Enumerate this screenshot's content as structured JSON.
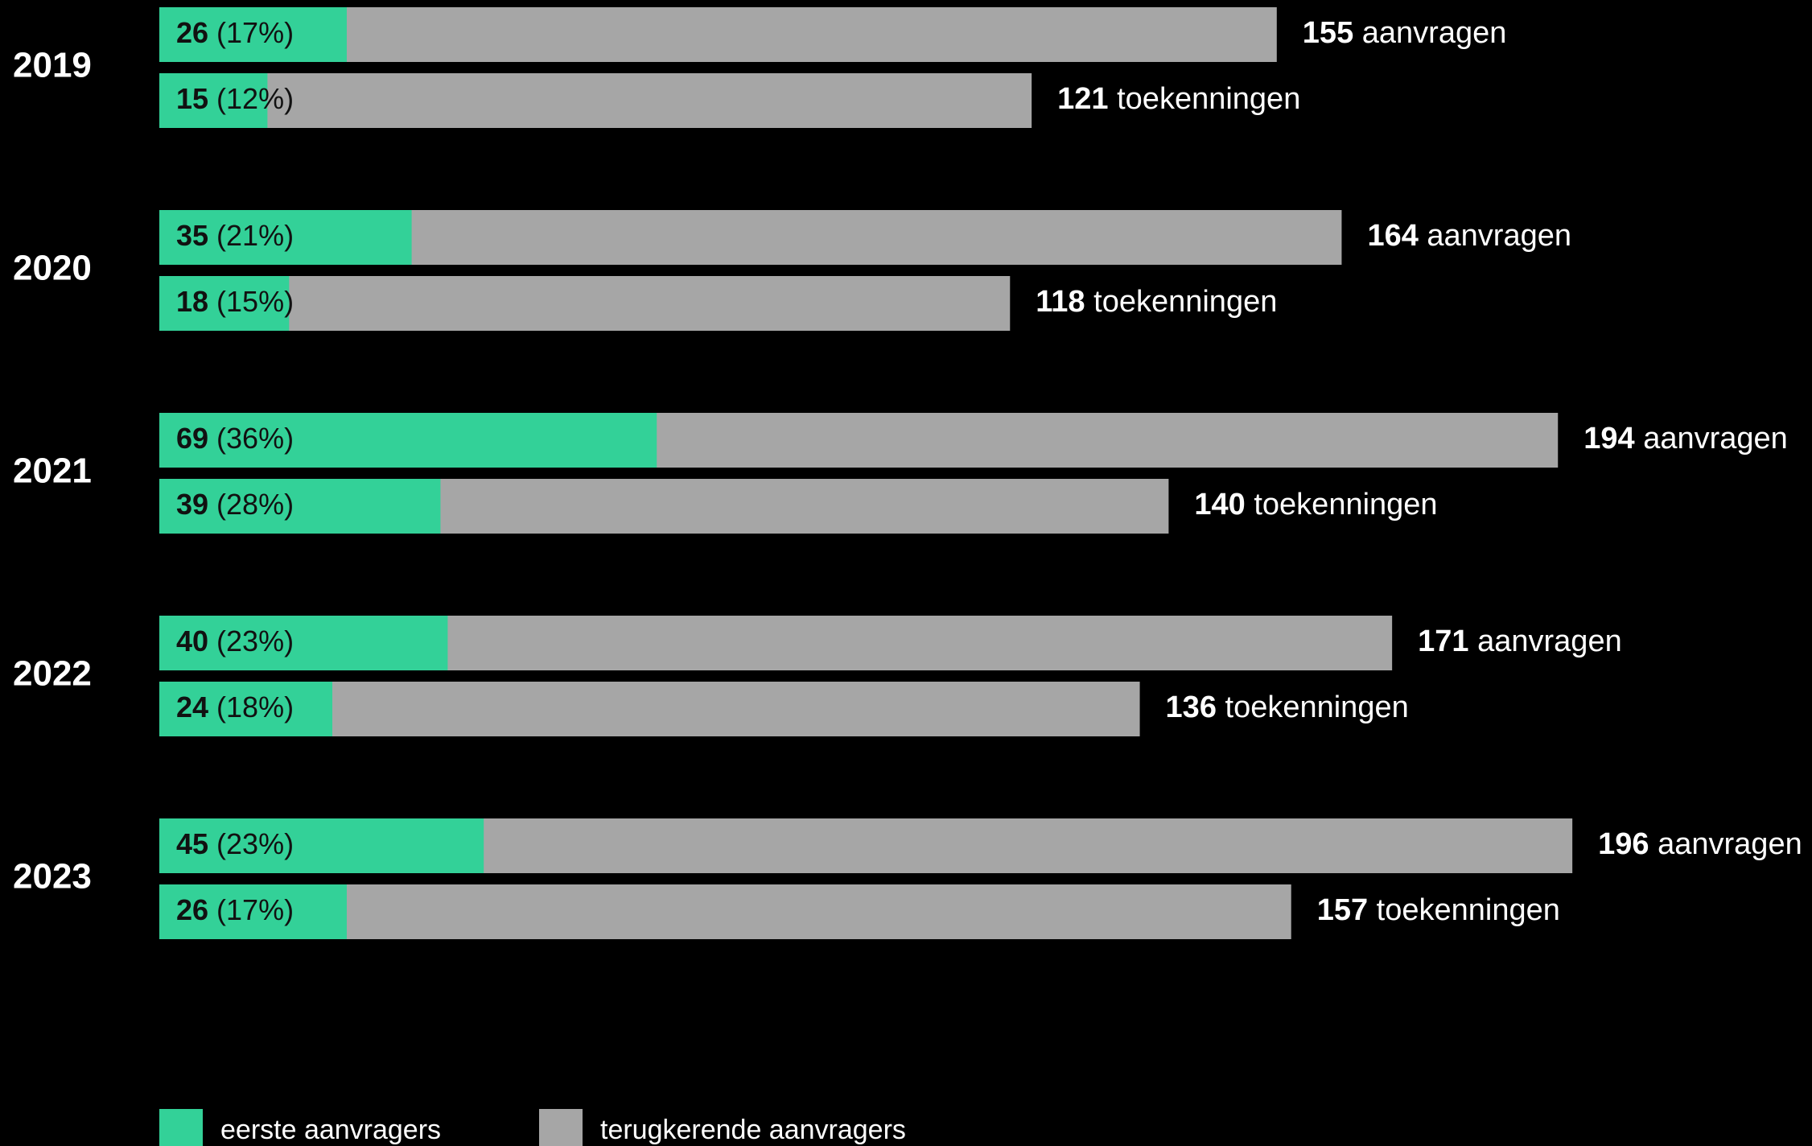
{
  "chart_data": {
    "type": "bar",
    "orientation": "horizontal",
    "stacked": true,
    "colors": {
      "background": "#000000",
      "eerste": "#33d198",
      "terugkerend": "#a6a6a6",
      "text": "#ffffff"
    },
    "legend": {
      "placement": "bottom-left",
      "items": [
        {
          "key": "eerste",
          "label": "eerste aanvragers"
        },
        {
          "key": "terugkerend",
          "label": "terugkerende aanvragers"
        }
      ]
    },
    "groups": [
      {
        "year": "2019",
        "bars": [
          {
            "total": 155,
            "total_label": "aanvragen",
            "first": 26,
            "first_pct": "(17%)"
          },
          {
            "total": 121,
            "total_label": "toekenningen",
            "first": 15,
            "first_pct": "(12%)"
          }
        ]
      },
      {
        "year": "2020",
        "bars": [
          {
            "total": 164,
            "total_label": "aanvragen",
            "first": 35,
            "first_pct": "(21%)"
          },
          {
            "total": 118,
            "total_label": "toekenningen",
            "first": 18,
            "first_pct": "(15%)"
          }
        ]
      },
      {
        "year": "2021",
        "bars": [
          {
            "total": 194,
            "total_label": "aanvragen",
            "first": 69,
            "first_pct": "(36%)"
          },
          {
            "total": 140,
            "total_label": "toekenningen",
            "first": 39,
            "first_pct": "(28%)"
          }
        ]
      },
      {
        "year": "2022",
        "bars": [
          {
            "total": 171,
            "total_label": "aanvragen",
            "first": 40,
            "first_pct": "(23%)"
          },
          {
            "total": 136,
            "total_label": "toekenningen",
            "first": 24,
            "first_pct": "(18%)"
          }
        ]
      },
      {
        "year": "2023",
        "bars": [
          {
            "total": 196,
            "total_label": "aanvragen",
            "first": 45,
            "first_pct": "(23%)"
          },
          {
            "total": 157,
            "total_label": "toekenningen",
            "first": 26,
            "first_pct": "(17%)"
          }
        ]
      }
    ]
  }
}
